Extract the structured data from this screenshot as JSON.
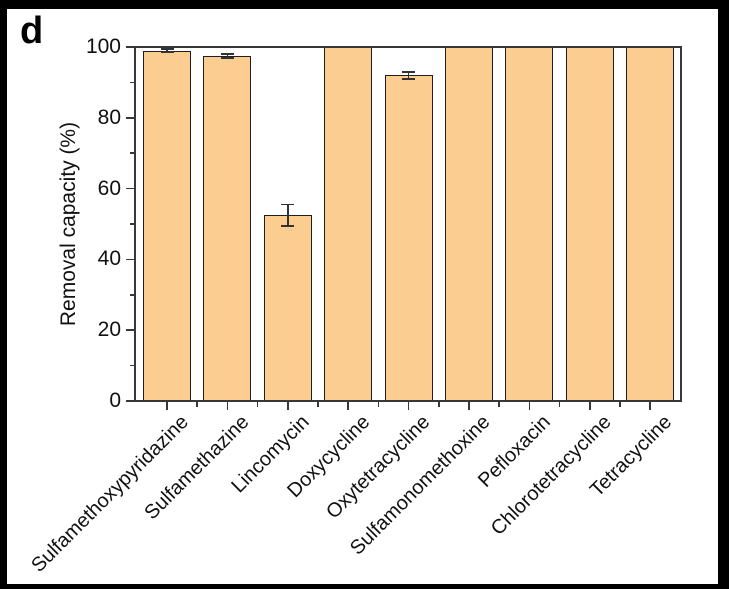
{
  "figure": {
    "panel_label": "d",
    "background_color": "#000000",
    "panel_color": "#ffffff"
  },
  "chart_data": {
    "type": "bar",
    "title": "",
    "ylabel": "Removal capacity (%)",
    "xlabel": "",
    "ylim": [
      0,
      100
    ],
    "yticks": [
      0,
      20,
      40,
      60,
      80,
      100
    ],
    "y_minor_ticks": [
      10,
      30,
      50,
      70,
      90
    ],
    "grid": false,
    "legend": null,
    "categories": [
      "Sulfamethoxypyridazine",
      "Sulfamethazine",
      "Lincomycin",
      "Doxycycline",
      "Oxytetracycline",
      "Sulfamonomethoxine",
      "Pefloxacin",
      "Chlorotetracycline",
      "Tetracycline"
    ],
    "values": [
      99,
      97.5,
      52.5,
      100,
      92,
      100,
      100,
      100,
      100
    ],
    "errors": [
      0.4,
      0.5,
      3,
      0,
      1,
      0,
      0,
      0,
      0
    ],
    "bar_color": "#FBCD90",
    "bar_edge_color": "#1f1f1f",
    "axis_color": "#383838",
    "error_bar_color": "#333333"
  }
}
